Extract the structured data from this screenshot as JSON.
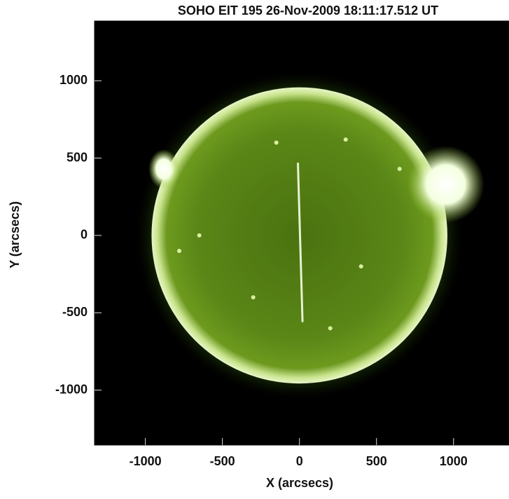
{
  "chart_data": {
    "type": "image",
    "title": "SOHO EIT 195 26-Nov-2009 18:11:17.512 UT",
    "x_label": "X (arcsecs)",
    "y_label": "Y (arcsecs)",
    "xlim": [
      -1330,
      1360
    ],
    "ylim": [
      -1355,
      1386
    ],
    "xticks": [
      -1000,
      -500,
      0,
      500,
      1000
    ],
    "yticks": [
      -1000,
      -500,
      0,
      500,
      1000
    ],
    "color": "#6a9a10"
  }
}
